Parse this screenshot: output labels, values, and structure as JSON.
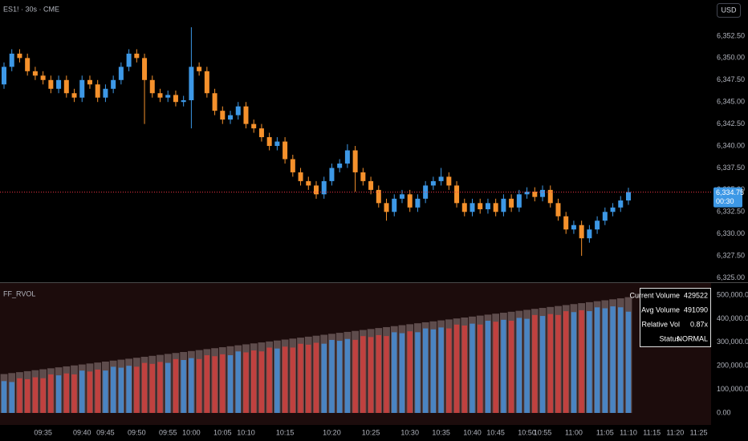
{
  "chart_data": [
    {
      "type": "candlestick",
      "title": "ES1! · 30s · CME",
      "currency": "USD",
      "up_color": "#3d98e6",
      "down_color": "#f5912c",
      "grid": false,
      "categories": [
        null,
        null,
        null,
        null,
        null,
        "09:35",
        null,
        null,
        null,
        null,
        "09:40",
        null,
        null,
        "09:45",
        null,
        null,
        null,
        "09:50",
        null,
        null,
        null,
        "09:55",
        null,
        null,
        "10:00",
        null,
        null,
        null,
        "10:05",
        null,
        null,
        "10:10",
        null,
        null,
        null,
        null,
        "10:15",
        null,
        null,
        null,
        null,
        null,
        "10:20",
        null,
        null,
        null,
        null,
        "10:25",
        null,
        null,
        null,
        null,
        "10:30",
        null,
        null,
        null,
        "10:35",
        null,
        null,
        null,
        "10:40",
        null,
        null,
        "10:45",
        null,
        null,
        null,
        "10:50",
        null,
        "10:55",
        null,
        null,
        null,
        "11:00",
        null,
        null,
        null,
        "11:05",
        null,
        null,
        "11:10",
        null,
        null,
        "11:15",
        null,
        null,
        "11:20",
        null,
        null,
        "11:25"
      ],
      "open": [
        6347,
        6349,
        6350.5,
        6350,
        6348.5,
        6348,
        6347.5,
        6346.5,
        6347.5,
        6346,
        6345.5,
        6347.5,
        6347,
        6345.5,
        6346.5,
        6347.5,
        6349,
        6350.5,
        6350,
        6347.5,
        6346,
        6345.5,
        6345.8,
        6345,
        6345.2,
        6349,
        6348.5,
        6346,
        6344,
        6343,
        6343.5,
        6344.5,
        6342.5,
        6342,
        6341,
        6340,
        6340.5,
        6338.5,
        6337,
        6336,
        6335.5,
        6334.5,
        6336,
        6337.5,
        6338,
        6339.5,
        6337,
        6336,
        6335,
        6333.5,
        6332.5,
        6334,
        6334.5,
        6333,
        6334,
        6335.5,
        6336,
        6336.5,
        6335.5,
        6333.5,
        6332.5,
        6333.5,
        6332.8,
        6333.5,
        6332.5,
        6334,
        6333,
        6334.5,
        6334.8,
        6334.2,
        6335,
        6333.5,
        6332,
        6330.5,
        6331,
        6329.5,
        6330.5,
        6331.5,
        6332.5,
        6333,
        6333.8,
        null,
        null,
        null,
        null,
        null,
        null,
        null,
        null,
        null
      ],
      "high": [
        6349.5,
        6351,
        6351,
        6350.5,
        6349,
        6348.5,
        6348,
        6348,
        6348,
        6346.5,
        6348,
        6348,
        6347.5,
        6347,
        6348,
        6349.5,
        6351,
        6351,
        6350.5,
        6348,
        6346.5,
        6346.3,
        6346.3,
        6345.7,
        6353.5,
        6349.5,
        6349,
        6346.5,
        6344.5,
        6344,
        6345,
        6345,
        6343,
        6342.5,
        6341.5,
        6341,
        6341,
        6339,
        6337.5,
        6336.5,
        6336,
        6336.5,
        6338,
        6338.5,
        6340.2,
        6340,
        6337.5,
        6336.5,
        6335.5,
        6334,
        6334.5,
        6335,
        6335,
        6334.5,
        6336,
        6336.5,
        6337.5,
        6337,
        6336,
        6334,
        6334,
        6334,
        6334,
        6334,
        6334.5,
        6334.5,
        6335,
        6335.3,
        6335.3,
        6335.5,
        6335.5,
        6334,
        6332.5,
        6331.5,
        6331.5,
        6331,
        6332,
        6333,
        6333.5,
        6334.3,
        6335.25,
        null,
        null,
        null,
        null,
        null,
        null,
        null,
        null,
        null
      ],
      "low": [
        6346.5,
        6348.5,
        6349.5,
        6348,
        6347.5,
        6347,
        6346,
        6346,
        6345.5,
        6345,
        6345,
        6346.5,
        6345,
        6345,
        6346,
        6347,
        6348.5,
        6349.5,
        6342.5,
        6345.5,
        6345,
        6345,
        6344.5,
        6344.5,
        6342,
        6348,
        6345.5,
        6343.5,
        6342.5,
        6342.5,
        6343,
        6342,
        6341.5,
        6340.5,
        6339.5,
        6339.5,
        6338,
        6336.5,
        6335.5,
        6335,
        6334,
        6334,
        6335.5,
        6337,
        6337.5,
        6334.8,
        6335.5,
        6334.5,
        6333,
        6331.5,
        6332,
        6333.5,
        6332.5,
        6332.5,
        6333.5,
        6335,
        6335.5,
        6335,
        6333,
        6332,
        6332,
        6332.3,
        6332.3,
        6332,
        6332,
        6332.5,
        6332.5,
        6334,
        6333.7,
        6333.7,
        6333,
        6331.5,
        6330,
        6330,
        6327.5,
        6329,
        6330,
        6331,
        6332,
        6332.5,
        6333.3,
        null,
        null,
        null,
        null,
        null,
        null,
        null,
        null,
        null
      ],
      "close": [
        6349,
        6350.5,
        6350,
        6348.5,
        6348,
        6347.5,
        6346.5,
        6347.5,
        6346,
        6345.5,
        6347.5,
        6347,
        6345.5,
        6346.5,
        6347.5,
        6349,
        6350.5,
        6350,
        6347.5,
        6346,
        6345.5,
        6345.8,
        6345,
        6345.2,
        6349,
        6348.5,
        6346,
        6344,
        6343,
        6343.5,
        6344.5,
        6342.5,
        6342,
        6341,
        6340,
        6340.5,
        6338.5,
        6337,
        6336,
        6335.5,
        6334.5,
        6336,
        6337.5,
        6338,
        6339.5,
        6337,
        6336,
        6335,
        6333.5,
        6332.5,
        6334,
        6334.5,
        6333,
        6334,
        6335.5,
        6336,
        6336.5,
        6335.5,
        6333.5,
        6332.5,
        6333.5,
        6332.8,
        6333.5,
        6332.5,
        6334,
        6333,
        6334.5,
        6334.8,
        6334.2,
        6335,
        6333.5,
        6332,
        6330.5,
        6331,
        6329.5,
        6330.5,
        6331.5,
        6332.5,
        6333,
        6333.8,
        6334.75,
        null,
        null,
        null,
        null,
        null,
        null,
        null,
        null,
        null
      ],
      "ylim": [
        6324.5,
        6356.6
      ],
      "yticks": [
        {
          "value": 6325,
          "label": "6,325.00"
        },
        {
          "value": 6327.5,
          "label": "6,327.50"
        },
        {
          "value": 6330,
          "label": "6,330.00"
        },
        {
          "value": 6332.5,
          "label": "6,332.50"
        },
        {
          "value": 6335,
          "label": "6,335.00"
        },
        {
          "value": 6337.5,
          "label": "6,337.50"
        },
        {
          "value": 6340,
          "label": "6,340.00"
        },
        {
          "value": 6342.5,
          "label": "6,342.50"
        },
        {
          "value": 6345,
          "label": "6,345.00"
        },
        {
          "value": 6347.5,
          "label": "6,347.50"
        },
        {
          "value": 6350,
          "label": "6,350.00"
        },
        {
          "value": 6352.5,
          "label": "6,352.50"
        }
      ],
      "price_tag": {
        "value": 6334.75,
        "label": "6,334.75"
      },
      "countdown": "00:30",
      "price_line_color": "#f23645"
    },
    {
      "type": "bar",
      "title": "FF_RVOL",
      "up_color": "#4a84c2",
      "down_color": "#c0413f",
      "average_color": "#5e4c4c",
      "volume": [
        135000,
        131100,
        147100,
        143200,
        151300,
        147300,
        163400,
        159400,
        167500,
        163600,
        179600,
        175700,
        183800,
        179800,
        195900,
        192000,
        200000,
        196100,
        212200,
        208200,
        216300,
        212300,
        228400,
        224500,
        232500,
        228600,
        244700,
        240700,
        248800,
        244900,
        260900,
        257000,
        265000,
        261100,
        277200,
        273200,
        281300,
        277400,
        293400,
        289500,
        297600,
        293600,
        309700,
        305800,
        313800,
        309900,
        325900,
        322000,
        330100,
        326100,
        342200,
        338300,
        346300,
        342400,
        358500,
        354500,
        362600,
        358600,
        374700,
        370800,
        378800,
        374900,
        391000,
        387000,
        395100,
        391200,
        403200,
        399300,
        415400,
        411400,
        419500,
        415500,
        431600,
        427700,
        435700,
        431800,
        447900,
        443900,
        452000,
        448100,
        429522
      ],
      "average": [
        165000,
        169100,
        173100,
        177200,
        181300,
        185300,
        189400,
        193400,
        197500,
        201600,
        205600,
        209700,
        213800,
        217800,
        221900,
        226000,
        230000,
        234100,
        238200,
        242200,
        246300,
        250300,
        254400,
        258500,
        262500,
        266600,
        270700,
        274700,
        278800,
        282900,
        286900,
        291000,
        295000,
        299100,
        303200,
        307200,
        311300,
        315400,
        319400,
        323500,
        327600,
        331600,
        335700,
        339800,
        343800,
        347900,
        351900,
        356000,
        360100,
        364100,
        368200,
        372300,
        376300,
        380400,
        384500,
        388500,
        392600,
        396600,
        400700,
        404800,
        408800,
        412900,
        417000,
        421000,
        425100,
        429200,
        433200,
        437300,
        441400,
        445400,
        449500,
        453500,
        457600,
        461700,
        465700,
        469800,
        473900,
        477900,
        482000,
        486100,
        491090
      ],
      "ylim": [
        -51000,
        551000
      ],
      "yticks": [
        {
          "value": 0,
          "label": "0.00"
        },
        {
          "value": 100000,
          "label": "100,000.00"
        },
        {
          "value": 200000,
          "label": "200,000.00"
        },
        {
          "value": 300000,
          "label": "300,000.00"
        },
        {
          "value": 400000,
          "label": "400,000.00"
        },
        {
          "value": 500000,
          "label": "500,000.00"
        }
      ],
      "table": {
        "rows": [
          [
            "Current Volume",
            "429522"
          ],
          [
            "Avg Volume",
            "491090"
          ],
          [
            "Relative Vol",
            "0.87x"
          ],
          [
            "Status",
            "NORMAL"
          ]
        ]
      }
    }
  ]
}
